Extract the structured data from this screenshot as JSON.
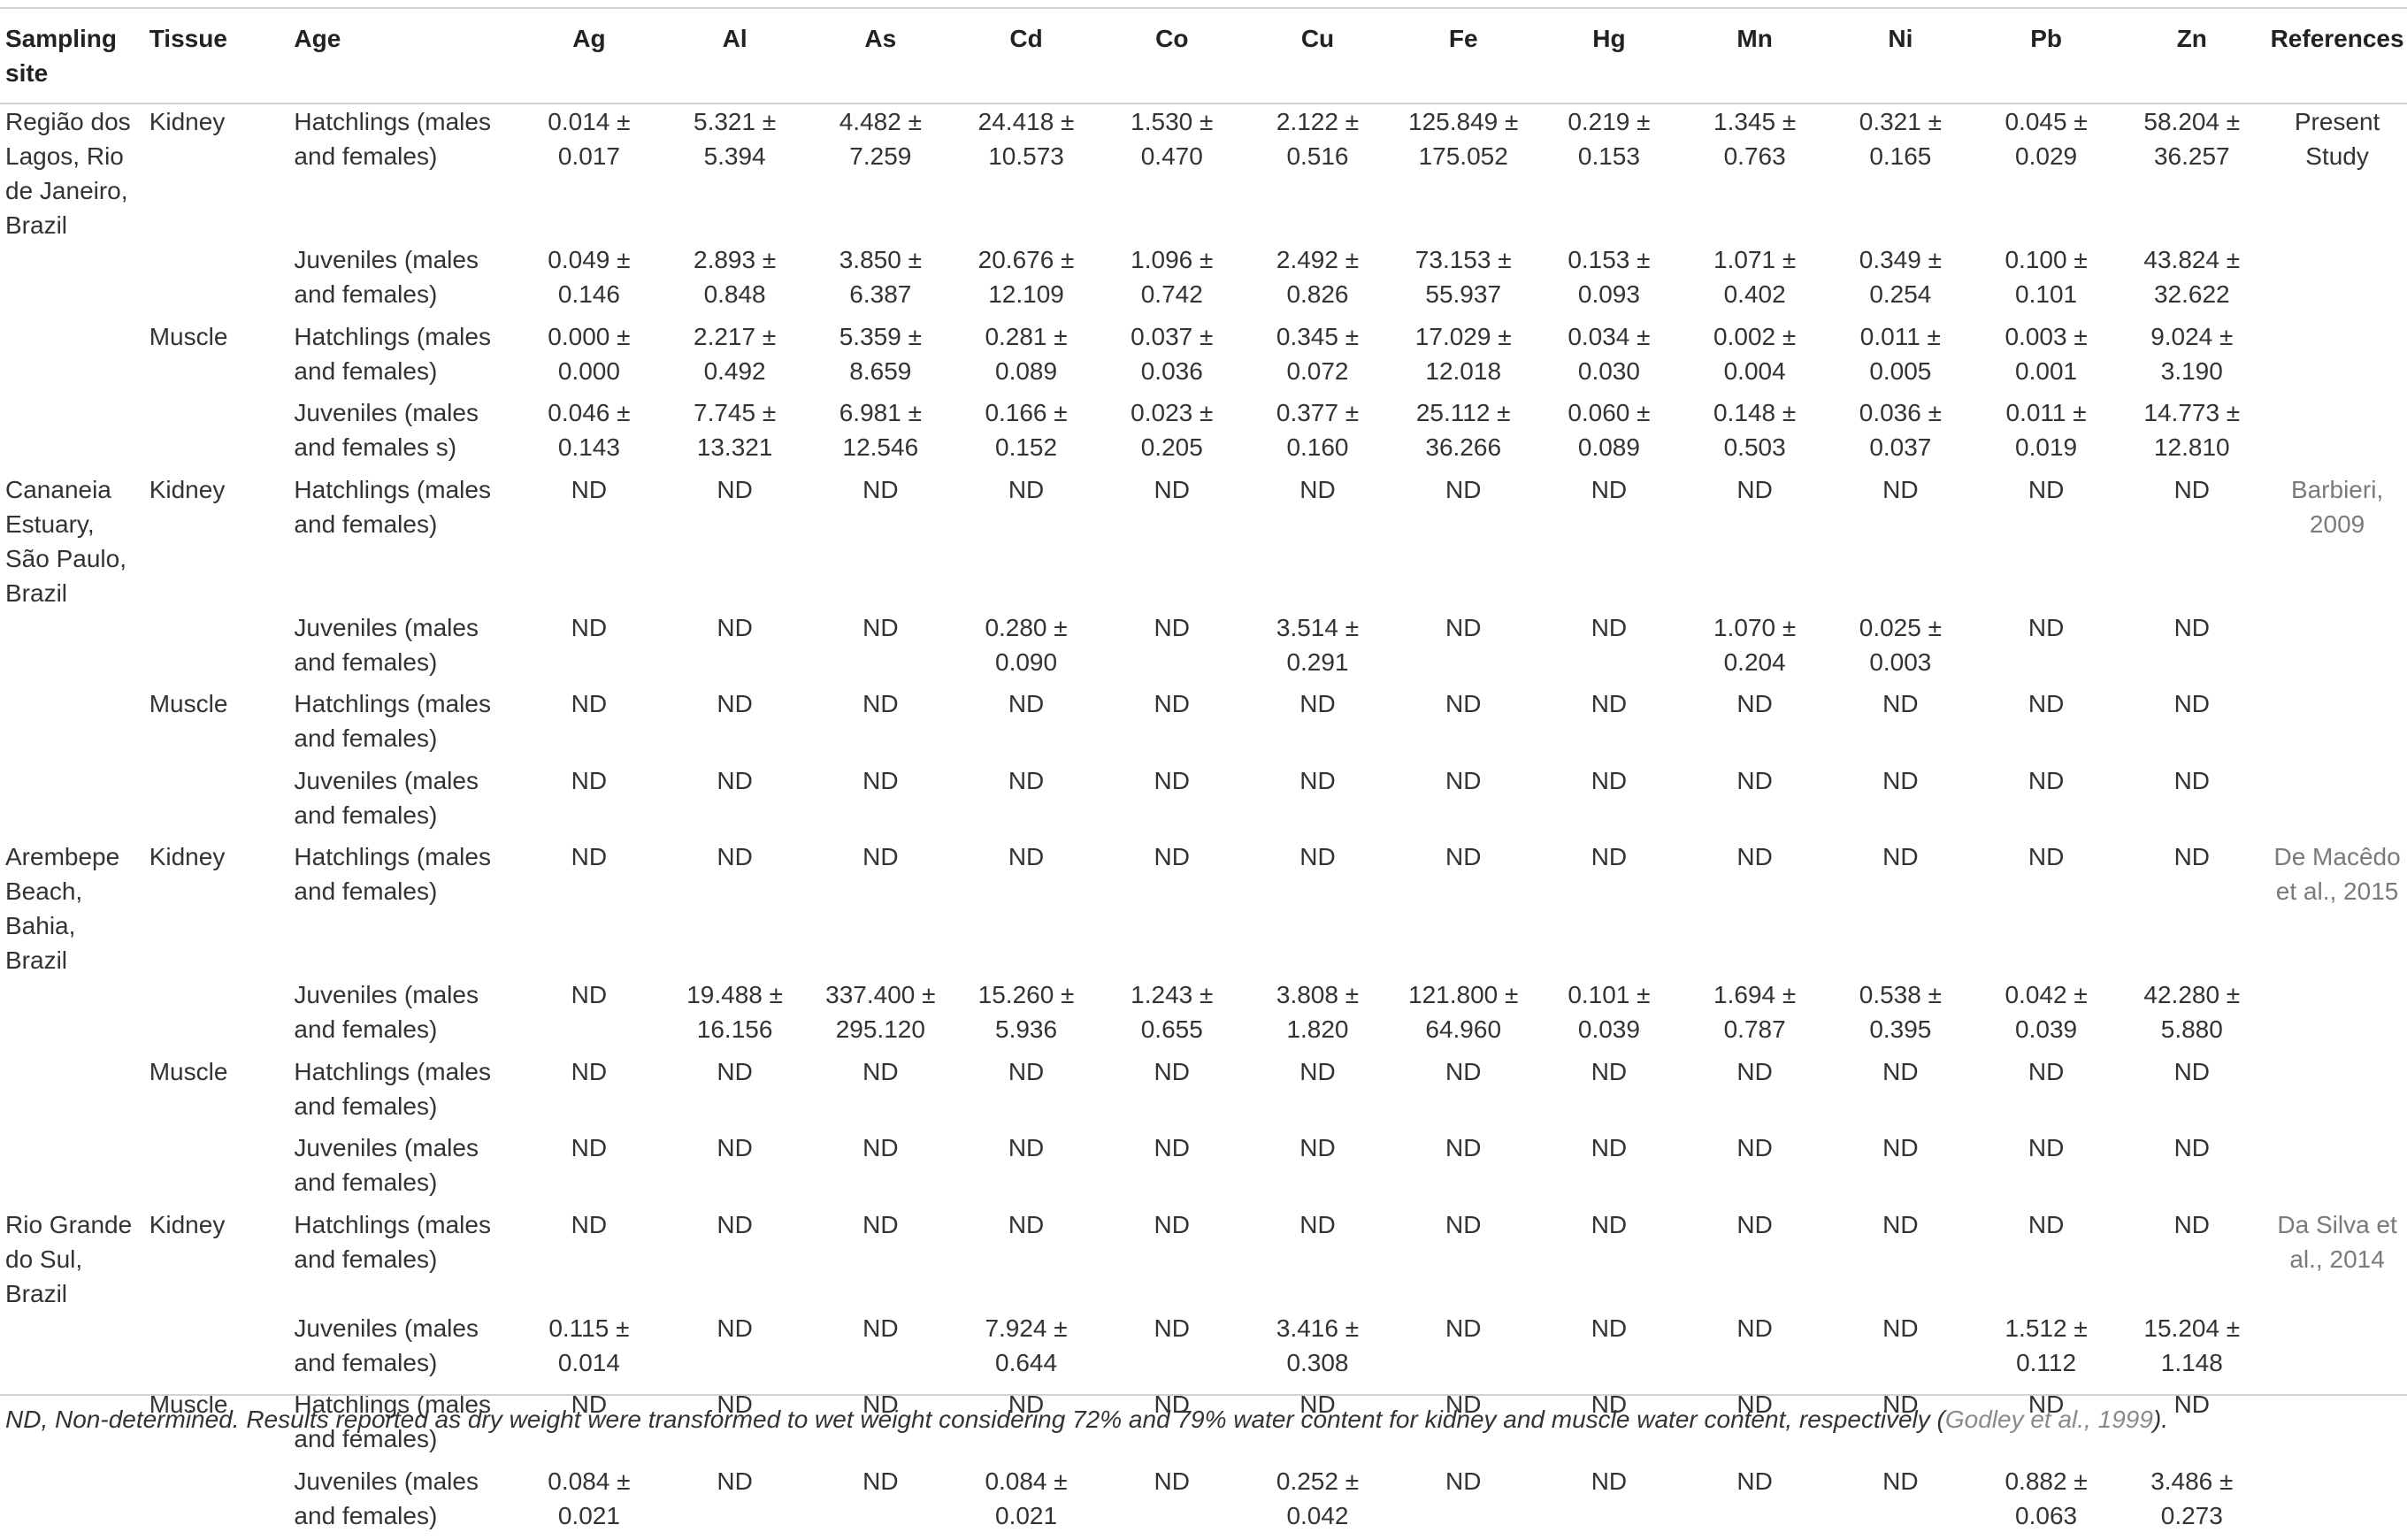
{
  "headers": [
    "Sampling site",
    "Tissue",
    "Age",
    "Ag",
    "Al",
    "As",
    "Cd",
    "Co",
    "Cu",
    "Fe",
    "Hg",
    "Mn",
    "Ni",
    "Pb",
    "Zn",
    "References"
  ],
  "rows": [
    {
      "site": "Região dos Lagos, Rio de Janeiro, Brazil",
      "tissue": "Kidney",
      "age": "Hatchlings (males and females)",
      "values": [
        "0.014 ± 0.017",
        "5.321 ± 5.394",
        "4.482 ± 7.259",
        "24.418 ± 10.573",
        "1.530 ± 0.470",
        "2.122 ± 0.516",
        "125.849 ± 175.052",
        "0.219 ± 0.153",
        "1.345 ± 0.763",
        "0.321 ± 0.165",
        "0.045 ± 0.029",
        "58.204 ± 36.257"
      ],
      "reference": "Present Study"
    },
    {
      "site": "",
      "tissue": "",
      "age": "Juveniles (males and females)",
      "values": [
        "0.049 ± 0.146",
        "2.893 ± 0.848",
        "3.850 ± 6.387",
        "20.676 ± 12.109",
        "1.096 ± 0.742",
        "2.492 ± 0.826",
        "73.153 ± 55.937",
        "0.153 ± 0.093",
        "1.071 ± 0.402",
        "0.349 ± 0.254",
        "0.100 ± 0.101",
        "43.824 ± 32.622"
      ],
      "reference": ""
    },
    {
      "site": "",
      "tissue": "Muscle",
      "age": "Hatchlings (males and females)",
      "values": [
        "0.000 ± 0.000",
        "2.217 ± 0.492",
        "5.359 ± 8.659",
        "0.281 ± 0.089",
        "0.037 ± 0.036",
        "0.345 ± 0.072",
        "17.029 ± 12.018",
        "0.034 ± 0.030",
        "0.002 ± 0.004",
        "0.011 ± 0.005",
        "0.003 ± 0.001",
        "9.024 ± 3.190"
      ],
      "reference": ""
    },
    {
      "site": "",
      "tissue": "",
      "age": "Juveniles (males and females s)",
      "values": [
        "0.046 ± 0.143",
        "7.745 ± 13.321",
        "6.981 ± 12.546",
        "0.166 ± 0.152",
        "0.023 ± 0.205",
        "0.377 ± 0.160",
        "25.112 ± 36.266",
        "0.060 ± 0.089",
        "0.148 ± 0.503",
        "0.036 ± 0.037",
        "0.011 ± 0.019",
        "14.773 ± 12.810"
      ],
      "reference": ""
    },
    {
      "site": "Cananeia Estuary, São Paulo, Brazil",
      "tissue": "Kidney",
      "age": "Hatchlings (males and females)",
      "values": [
        "ND",
        "ND",
        "ND",
        "ND",
        "ND",
        "ND",
        "ND",
        "ND",
        "ND",
        "ND",
        "ND",
        "ND"
      ],
      "reference": "Barbieri, 2009"
    },
    {
      "site": "",
      "tissue": "",
      "age": "Juveniles (males and females)",
      "values": [
        "ND",
        "ND",
        "ND",
        "0.280 ± 0.090",
        "ND",
        "3.514 ± 0.291",
        "ND",
        "ND",
        "1.070 ± 0.204",
        "0.025 ± 0.003",
        "ND",
        "ND"
      ],
      "reference": ""
    },
    {
      "site": "",
      "tissue": "Muscle",
      "age": "Hatchlings (males and females)",
      "values": [
        "ND",
        "ND",
        "ND",
        "ND",
        "ND",
        "ND",
        "ND",
        "ND",
        "ND",
        "ND",
        "ND",
        "ND"
      ],
      "reference": ""
    },
    {
      "site": "",
      "tissue": "",
      "age": "Juveniles (males and females)",
      "values": [
        "ND",
        "ND",
        "ND",
        "ND",
        "ND",
        "ND",
        "ND",
        "ND",
        "ND",
        "ND",
        "ND",
        "ND"
      ],
      "reference": ""
    },
    {
      "site": "Arembepe Beach, Bahia, Brazil",
      "tissue": "Kidney",
      "age": "Hatchlings (males and females)",
      "values": [
        "ND",
        "ND",
        "ND",
        "ND",
        "ND",
        "ND",
        "ND",
        "ND",
        "ND",
        "ND",
        "ND",
        "ND"
      ],
      "reference": "De Macêdo et al., 2015"
    },
    {
      "site": "",
      "tissue": "",
      "age": "Juveniles (males and females)",
      "values": [
        "ND",
        "19.488 ± 16.156",
        "337.400 ± 295.120",
        "15.260 ± 5.936",
        "1.243 ± 0.655",
        "3.808 ± 1.820",
        "121.800 ± 64.960",
        "0.101 ± 0.039",
        "1.694 ± 0.787",
        "0.538 ± 0.395",
        "0.042 ± 0.039",
        "42.280 ± 5.880"
      ],
      "reference": ""
    },
    {
      "site": "",
      "tissue": "Muscle",
      "age": "Hatchlings (males and females)",
      "values": [
        "ND",
        "ND",
        "ND",
        "ND",
        "ND",
        "ND",
        "ND",
        "ND",
        "ND",
        "ND",
        "ND",
        "ND"
      ],
      "reference": ""
    },
    {
      "site": "",
      "tissue": "",
      "age": "Juveniles (males and females)",
      "values": [
        "ND",
        "ND",
        "ND",
        "ND",
        "ND",
        "ND",
        "ND",
        "ND",
        "ND",
        "ND",
        "ND",
        "ND"
      ],
      "reference": ""
    },
    {
      "site": "Rio Grande do Sul, Brazil",
      "tissue": "Kidney",
      "age": "Hatchlings (males and females)",
      "values": [
        "ND",
        "ND",
        "ND",
        "ND",
        "ND",
        "ND",
        "ND",
        "ND",
        "ND",
        "ND",
        "ND",
        "ND"
      ],
      "reference": "Da Silva et al., 2014"
    },
    {
      "site": "",
      "tissue": "",
      "age": "Juveniles (males and females)",
      "values": [
        "0.115 ± 0.014",
        "ND",
        "ND",
        "7.924 ± 0.644",
        "ND",
        "3.416 ± 0.308",
        "ND",
        "ND",
        "ND",
        "ND",
        "1.512 ± 0.112",
        "15.204 ± 1.148"
      ],
      "reference": ""
    },
    {
      "site": "",
      "tissue": "Muscle",
      "age": "Hatchlings (males and females)",
      "values": [
        "ND",
        "ND",
        "ND",
        "ND",
        "ND",
        "ND",
        "ND",
        "ND",
        "ND",
        "ND",
        "ND",
        "ND"
      ],
      "reference": ""
    },
    {
      "site": "",
      "tissue": "",
      "age": "Juveniles (males and females)",
      "values": [
        "0.084 ± 0.021",
        "ND",
        "ND",
        "0.084 ± 0.021",
        "ND",
        "0.252 ± 0.042",
        "ND",
        "ND",
        "ND",
        "ND",
        "0.882 ± 0.063",
        "3.486 ± 0.273"
      ],
      "reference": ""
    }
  ],
  "footnote": {
    "text": "ND, Non-determined. Results reported as dry weight were transformed to wet weight considering 72% and 79% water content for kidney and muscle water content, respectively (",
    "citation": "Godley et al., 1999",
    "suffix": ")."
  }
}
